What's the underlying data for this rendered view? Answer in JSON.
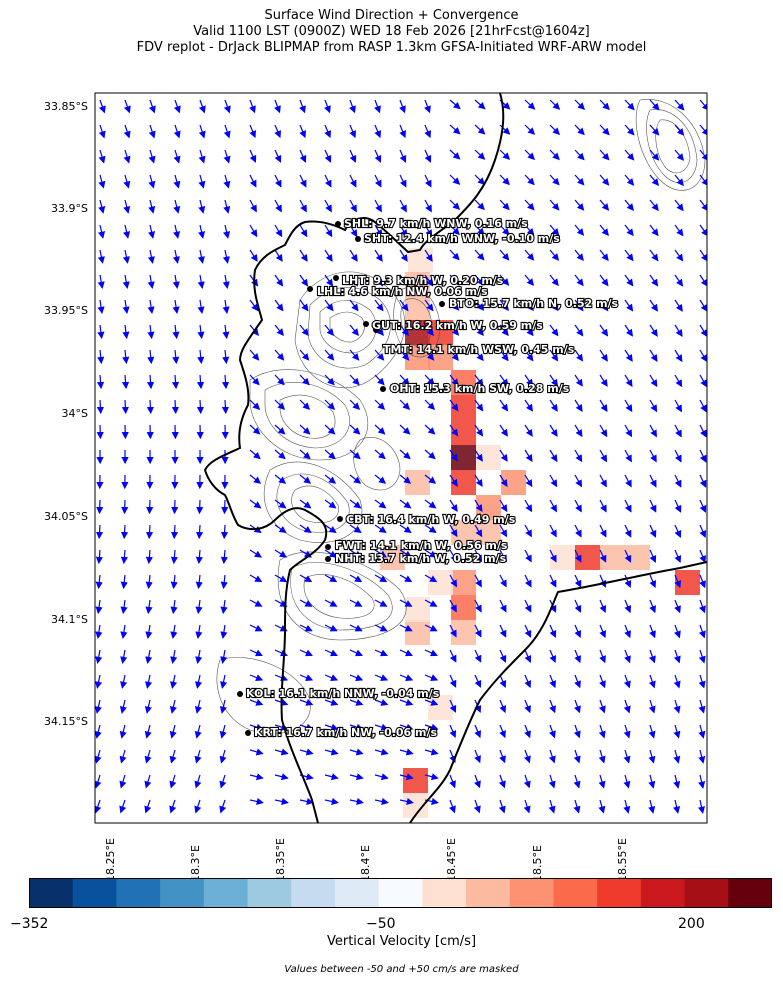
{
  "title": {
    "line1": "Surface Wind Direction + Convergence",
    "line2": "Valid 1100 LST (0900Z) WED 18 Feb 2026 [21hrFcst@1604z]",
    "line3": "FDV replot - DrJack BLIPMAP from RASP 1.3km GFSA-Initiated WRF-ARW model"
  },
  "latitude_labels": [
    "33.85°S",
    "33.9°S",
    "33.95°S",
    "34°S",
    "34.05°S",
    "34.1°S",
    "34.15°S"
  ],
  "longitude_labels": [
    "18.25°E",
    "18.3°E",
    "18.35°E",
    "18.4°E",
    "18.45°E",
    "18.5°E",
    "18.55°E"
  ],
  "stations": [
    {
      "id": "SHL",
      "text": "SHL: 9.7 km/h WNW, 0.16 m/s"
    },
    {
      "id": "SHT",
      "text": "SHT: 12.4 km/h WNW, -0.10 m/s"
    },
    {
      "id": "LHT",
      "text": "LHT: 9.3 km/h W, 0.20 m/s"
    },
    {
      "id": "LHL",
      "text": "LHL: 4.6 km/h NW, 0.06 m/s"
    },
    {
      "id": "BTO",
      "text": "BTO: 15.7 km/h N, 0.52 m/s"
    },
    {
      "id": "GUT",
      "text": "GUT: 16.2 km/h W, 0.59 m/s"
    },
    {
      "id": "TMT",
      "text": "TMT: 14.1 km/h WSW, 0.45 m/s"
    },
    {
      "id": "OHT",
      "text": "OHT: 15.3 km/h SW, 0.28 m/s"
    },
    {
      "id": "CBT",
      "text": "CBT: 16.4 km/h W, 0.49 m/s"
    },
    {
      "id": "FWT",
      "text": "FWT: 14.1 km/h W, 0.56 m/s"
    },
    {
      "id": "NHT",
      "text": "NHT: 13.7 km/h W, 0.52 m/s"
    },
    {
      "id": "KOL",
      "text": "KOL: 16.1 km/h NNW, -0.04 m/s"
    },
    {
      "id": "KRT",
      "text": "KRT: 16.7 km/h NW, -0.06 m/s"
    }
  ],
  "colorbar": {
    "colors": [
      "#08306b",
      "#08519c",
      "#2171b5",
      "#4292c6",
      "#6baed6",
      "#9ecae1",
      "#c6dbef",
      "#deebf7",
      "#f7fbff",
      "#fee0d2",
      "#fcbba1",
      "#fc9272",
      "#fb6a4a",
      "#ef3b2c",
      "#cb181d",
      "#a50f15",
      "#67000d"
    ],
    "tick_labels": [
      "−352",
      "−50",
      "200"
    ],
    "label": "Vertical Velocity [cm/s]"
  },
  "footnote": "Values between -50 and +50 cm/s are masked",
  "colors": {
    "wind_arrows": "#0000ff",
    "coastline": "#000000",
    "contours": "#555555",
    "station_dot": "#000000"
  }
}
